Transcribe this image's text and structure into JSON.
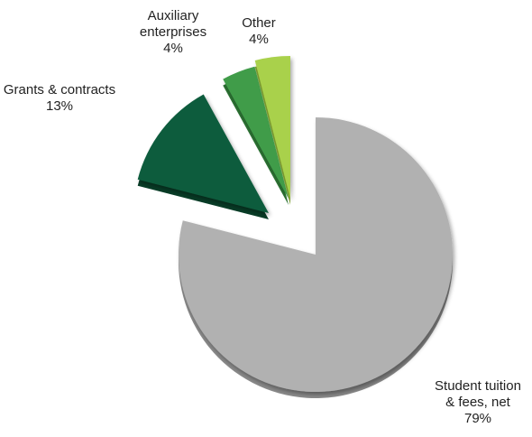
{
  "chart_data": {
    "type": "pie",
    "title": "",
    "slices": [
      {
        "label_lines": [
          "Student tuition",
          "& fees, net"
        ],
        "value": 79,
        "value_label": "79%",
        "color": "#b1b1b1",
        "side_color": "#8a8a8a"
      },
      {
        "label_lines": [
          "Grants & contracts"
        ],
        "value": 13,
        "value_label": "13%",
        "color": "#0e5c3c",
        "side_color": "#083d27"
      },
      {
        "label_lines": [
          "Auxiliary",
          "enterprises"
        ],
        "value": 4,
        "value_label": "4%",
        "color": "#3f9c48",
        "side_color": "#2c7233"
      },
      {
        "label_lines": [
          "Other"
        ],
        "value": 4,
        "value_label": "4%",
        "color": "#a9d14b",
        "side_color": "#7fa232"
      }
    ],
    "exploded": true,
    "legend": "none",
    "labels": "outside"
  }
}
